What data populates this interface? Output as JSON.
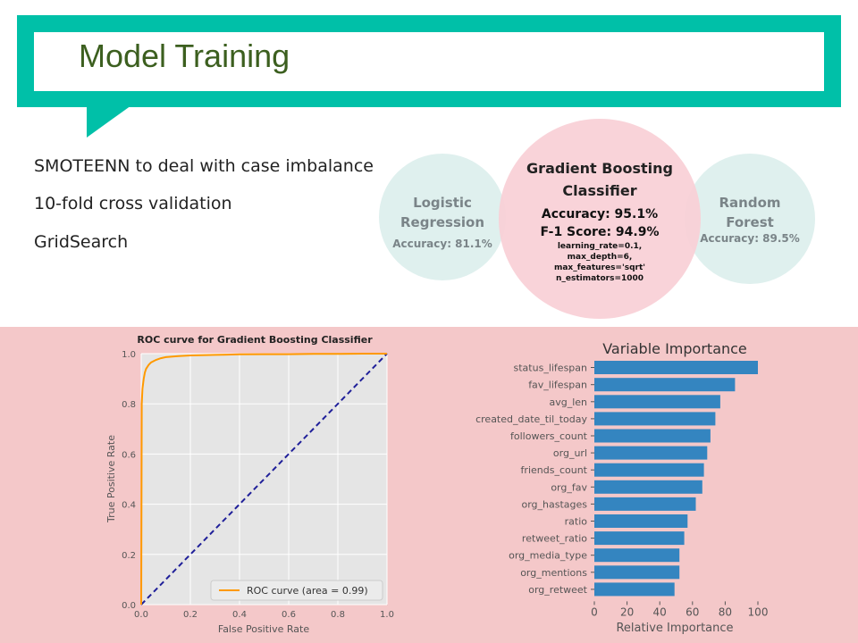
{
  "slide": {
    "title": "Model Training",
    "bullets": [
      "SMOTEENN to deal with case imbalance",
      "10-fold cross validation",
      "GridSearch"
    ]
  },
  "models": {
    "logistic": {
      "name_line1": "Logistic",
      "name_line2": "Regression",
      "accuracy": "Accuracy: 81.1%"
    },
    "gradient": {
      "name_line1": "Gradient Boosting",
      "name_line2": "Classifier",
      "accuracy": "Accuracy: 95.1%",
      "f1": "F-1 Score: 94.9%",
      "params": [
        "learning_rate=0.1,",
        "max_depth=6,",
        "max_features='sqrt'",
        "n_estimators=1000"
      ]
    },
    "random_forest": {
      "name_line1": "Random",
      "name_line2": "Forest",
      "accuracy": "Accuracy: 89.5%"
    }
  },
  "colors": {
    "teal": "#00c0a8",
    "title_green": "#3c5f1f",
    "bottom_bg": "#f4c8c9",
    "light_circle": "#dff0ee",
    "pink_circle": "#f9d0d6",
    "roc_line": "#ff9900",
    "diag": "#1f1f99",
    "bar": "#3485c0"
  },
  "chart_data": [
    {
      "type": "line",
      "title": "ROC curve for Gradient Boosting Classifier",
      "xlabel": "False Positive Rate",
      "ylabel": "True Positive Rate",
      "xlim": [
        0,
        1
      ],
      "ylim": [
        0,
        1
      ],
      "xticks": [
        "0.0",
        "0.2",
        "0.4",
        "0.6",
        "0.8",
        "1.0"
      ],
      "yticks": [
        "0.0",
        "0.2",
        "0.4",
        "0.6",
        "0.8",
        "1.0"
      ],
      "grid": true,
      "legend": "lower-right",
      "series": [
        {
          "name": "ROC curve (area = 0.99)",
          "x": [
            0,
            0.002,
            0.005,
            0.01,
            0.015,
            0.02,
            0.03,
            0.04,
            0.06,
            0.08,
            0.1,
            0.15,
            0.2,
            0.3,
            0.4,
            0.5,
            0.6,
            0.7,
            0.8,
            0.9,
            1.0
          ],
          "y": [
            0,
            0.8,
            0.86,
            0.9,
            0.925,
            0.94,
            0.955,
            0.965,
            0.975,
            0.982,
            0.986,
            0.99,
            0.993,
            0.995,
            0.997,
            0.998,
            0.998,
            0.999,
            0.999,
            1.0,
            1.0
          ]
        },
        {
          "x": [
            0,
            1
          ],
          "y": [
            0,
            1
          ],
          "style": "dashed"
        }
      ]
    },
    {
      "type": "bar",
      "orientation": "horizontal",
      "title": "Variable Importance",
      "xlabel": "Relative Importance",
      "xlim": [
        0,
        100
      ],
      "xticks": [
        "0",
        "20",
        "40",
        "60",
        "80",
        "100"
      ],
      "categories": [
        "status_lifespan",
        "fav_lifespan",
        "avg_len",
        "created_date_til_today",
        "followers_count",
        "org_url",
        "friends_count",
        "org_fav",
        "org_hastages",
        "ratio",
        "retweet_ratio",
        "org_media_type",
        "org_mentions",
        "org_retweet"
      ],
      "values": [
        100,
        86,
        77,
        74,
        71,
        69,
        67,
        66,
        62,
        57,
        55,
        52,
        52,
        49
      ]
    }
  ]
}
